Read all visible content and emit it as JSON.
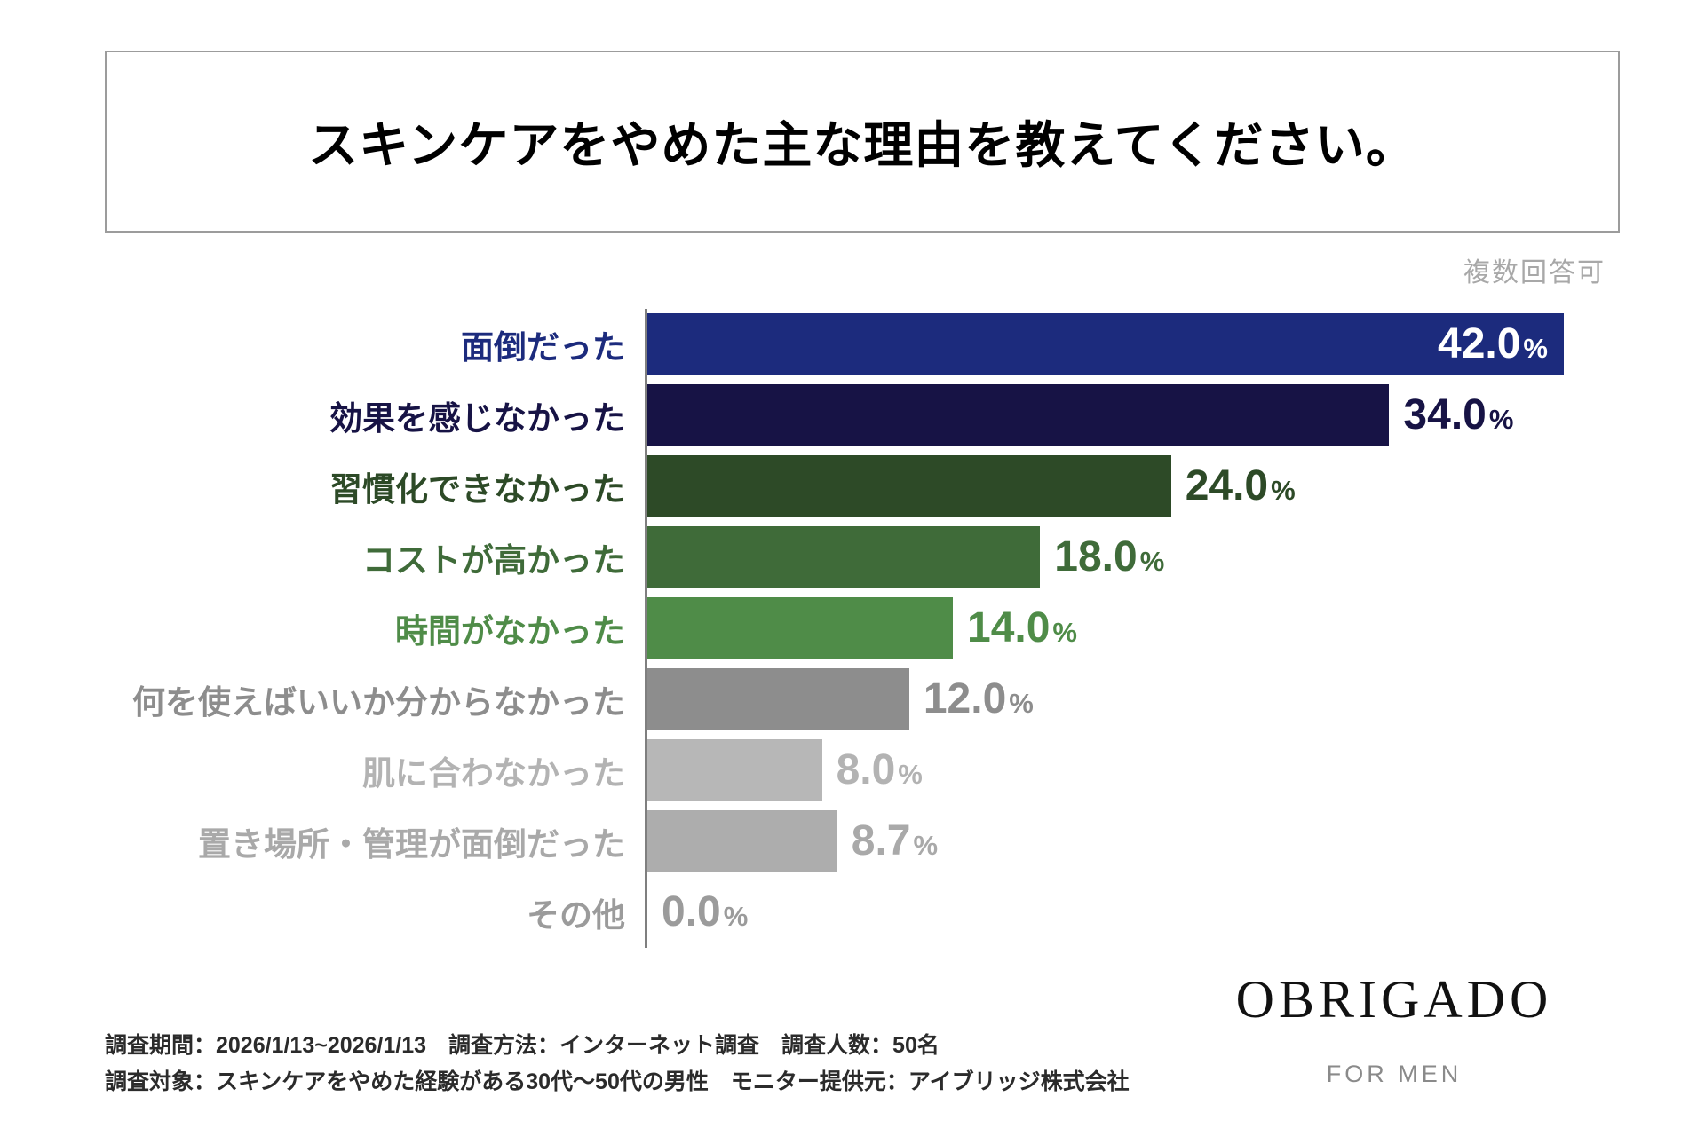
{
  "title": "スキンケアをやめた主な理由を教えてください。",
  "note": "複数回答可",
  "chart_data": {
    "type": "bar",
    "orientation": "horizontal",
    "title": "スキンケアをやめた主な理由を教えてください。",
    "unit": "%",
    "xlim": [
      0,
      42
    ],
    "grid": false,
    "categories": [
      "面倒だった",
      "効果を感じなかった",
      "習慣化できなかった",
      "コストが高かった",
      "時間がなかった",
      "何を使えばいいか分からなかった",
      "肌に合わなかった",
      "置き場所・管理が面倒だった",
      "その他"
    ],
    "values": [
      42.0,
      34.0,
      24.0,
      18.0,
      14.0,
      12.0,
      8.0,
      8.7,
      0.0
    ],
    "value_labels": [
      "42.0",
      "34.0",
      "24.0",
      "18.0",
      "14.0",
      "12.0",
      "8.0",
      "8.7",
      "0.0"
    ],
    "bar_colors": [
      "#1c2b7d",
      "#171345",
      "#2d4a27",
      "#3f6b39",
      "#4f8c48",
      "#8d8d8d",
      "#b7b7b7",
      "#adadad",
      "#9b9b9b"
    ],
    "label_colors": [
      "#1c2b7d",
      "#171345",
      "#2d4a27",
      "#3f6b39",
      "#4f8c48",
      "#8d8d8d",
      "#b3b3b3",
      "#a9a9a9",
      "#9b9b9b"
    ],
    "value_label_inside": [
      true,
      false,
      false,
      false,
      false,
      false,
      false,
      false,
      false
    ],
    "axis_line_color": "#7f7f7f"
  },
  "footer": {
    "line1": "調査期間：2026/1/13~2026/1/13　調査方法：インターネット調査　調査人数：50名",
    "line2": "調査対象：スキンケアをやめた経験がある30代〜50代の男性　モニター提供元：アイブリッジ株式会社"
  },
  "logo": {
    "name": "OBRIGADO",
    "tagline": "FOR MEN"
  }
}
